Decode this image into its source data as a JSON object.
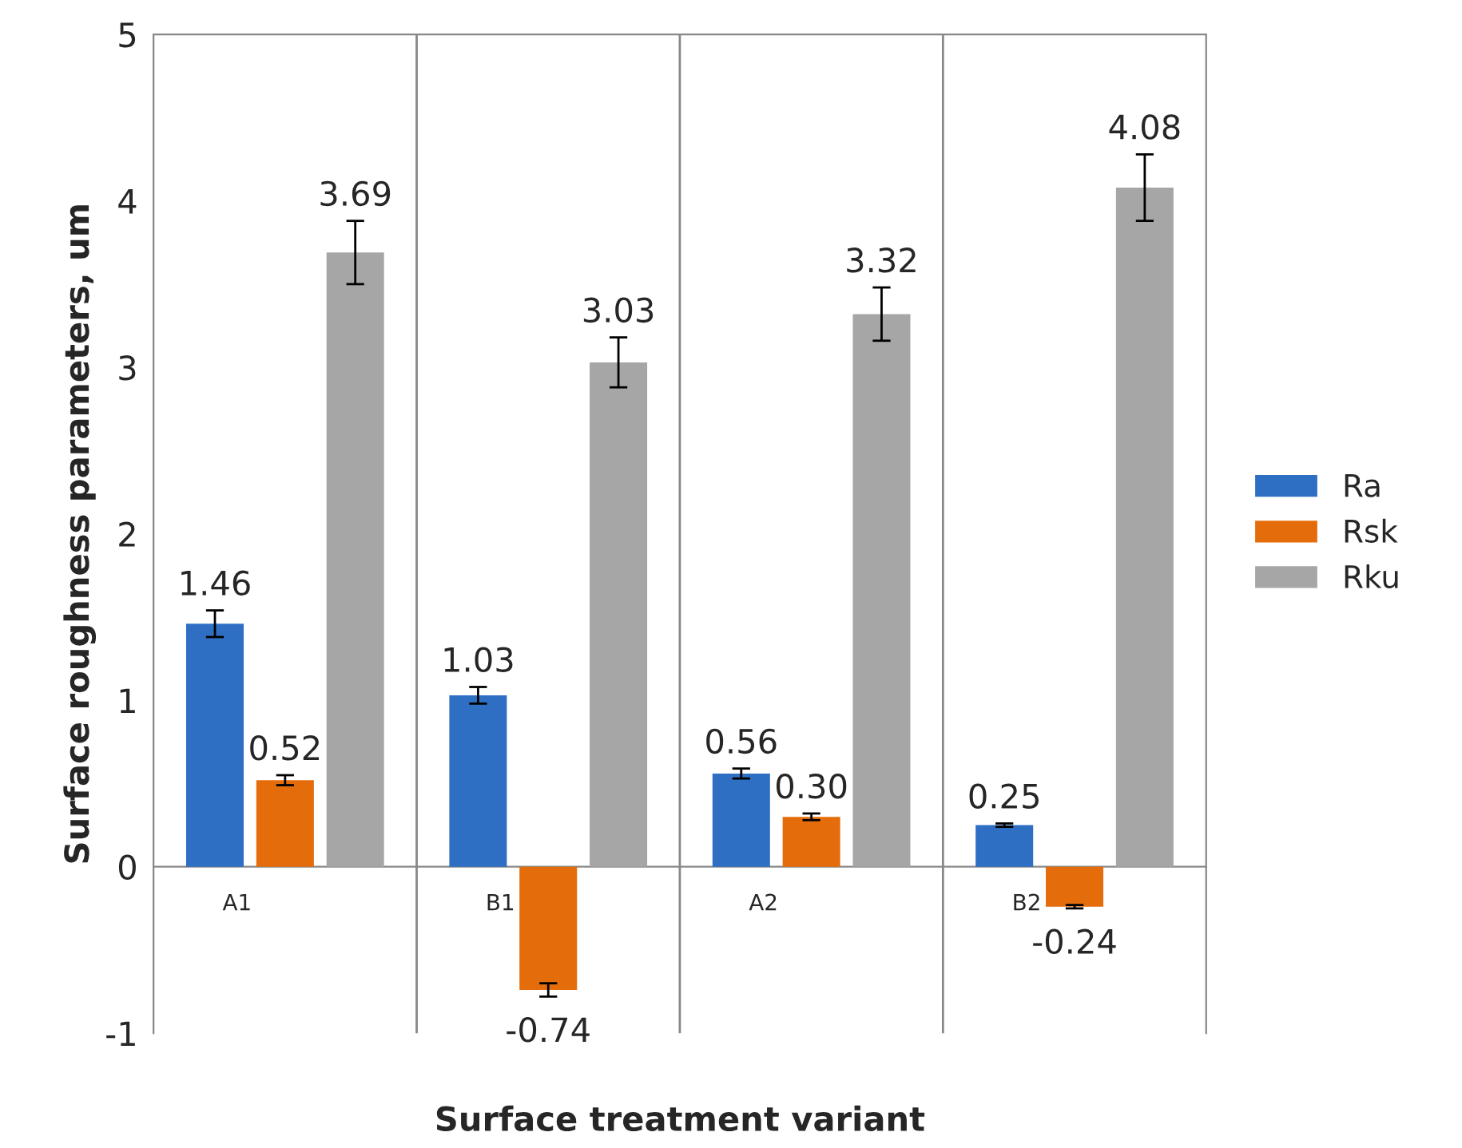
{
  "chart_data": {
    "type": "bar",
    "xlabel": "Surface treatment variant",
    "ylabel": "Surface roughness parameters, um",
    "categories": [
      "A1",
      "B1",
      "A2",
      "B2"
    ],
    "series": [
      {
        "name": "Ra",
        "color": "#2e6fc4",
        "values": [
          1.46,
          1.03,
          0.56,
          0.25
        ],
        "errors": [
          0.08,
          0.05,
          0.03,
          0.01
        ],
        "value_labels": [
          "1.46",
          "1.03",
          "0.56",
          "0.25"
        ]
      },
      {
        "name": "Rsk",
        "color": "#e46c0a",
        "values": [
          0.52,
          -0.74,
          0.3,
          -0.24
        ],
        "errors": [
          0.03,
          0.04,
          0.02,
          0.01
        ],
        "value_labels": [
          "0.52",
          "-0.74",
          "0.30",
          "-0.24"
        ]
      },
      {
        "name": "Rku",
        "color": "#a6a6a6",
        "values": [
          3.69,
          3.03,
          3.32,
          4.08
        ],
        "errors": [
          0.19,
          0.15,
          0.16,
          0.2
        ],
        "value_labels": [
          "3.69",
          "3.03",
          "3.32",
          "4.08"
        ]
      }
    ],
    "ylim": [
      -1,
      5
    ],
    "yticks": [
      -1,
      0,
      1,
      2,
      3,
      4,
      5
    ],
    "grid": "x",
    "legend": "right"
  }
}
